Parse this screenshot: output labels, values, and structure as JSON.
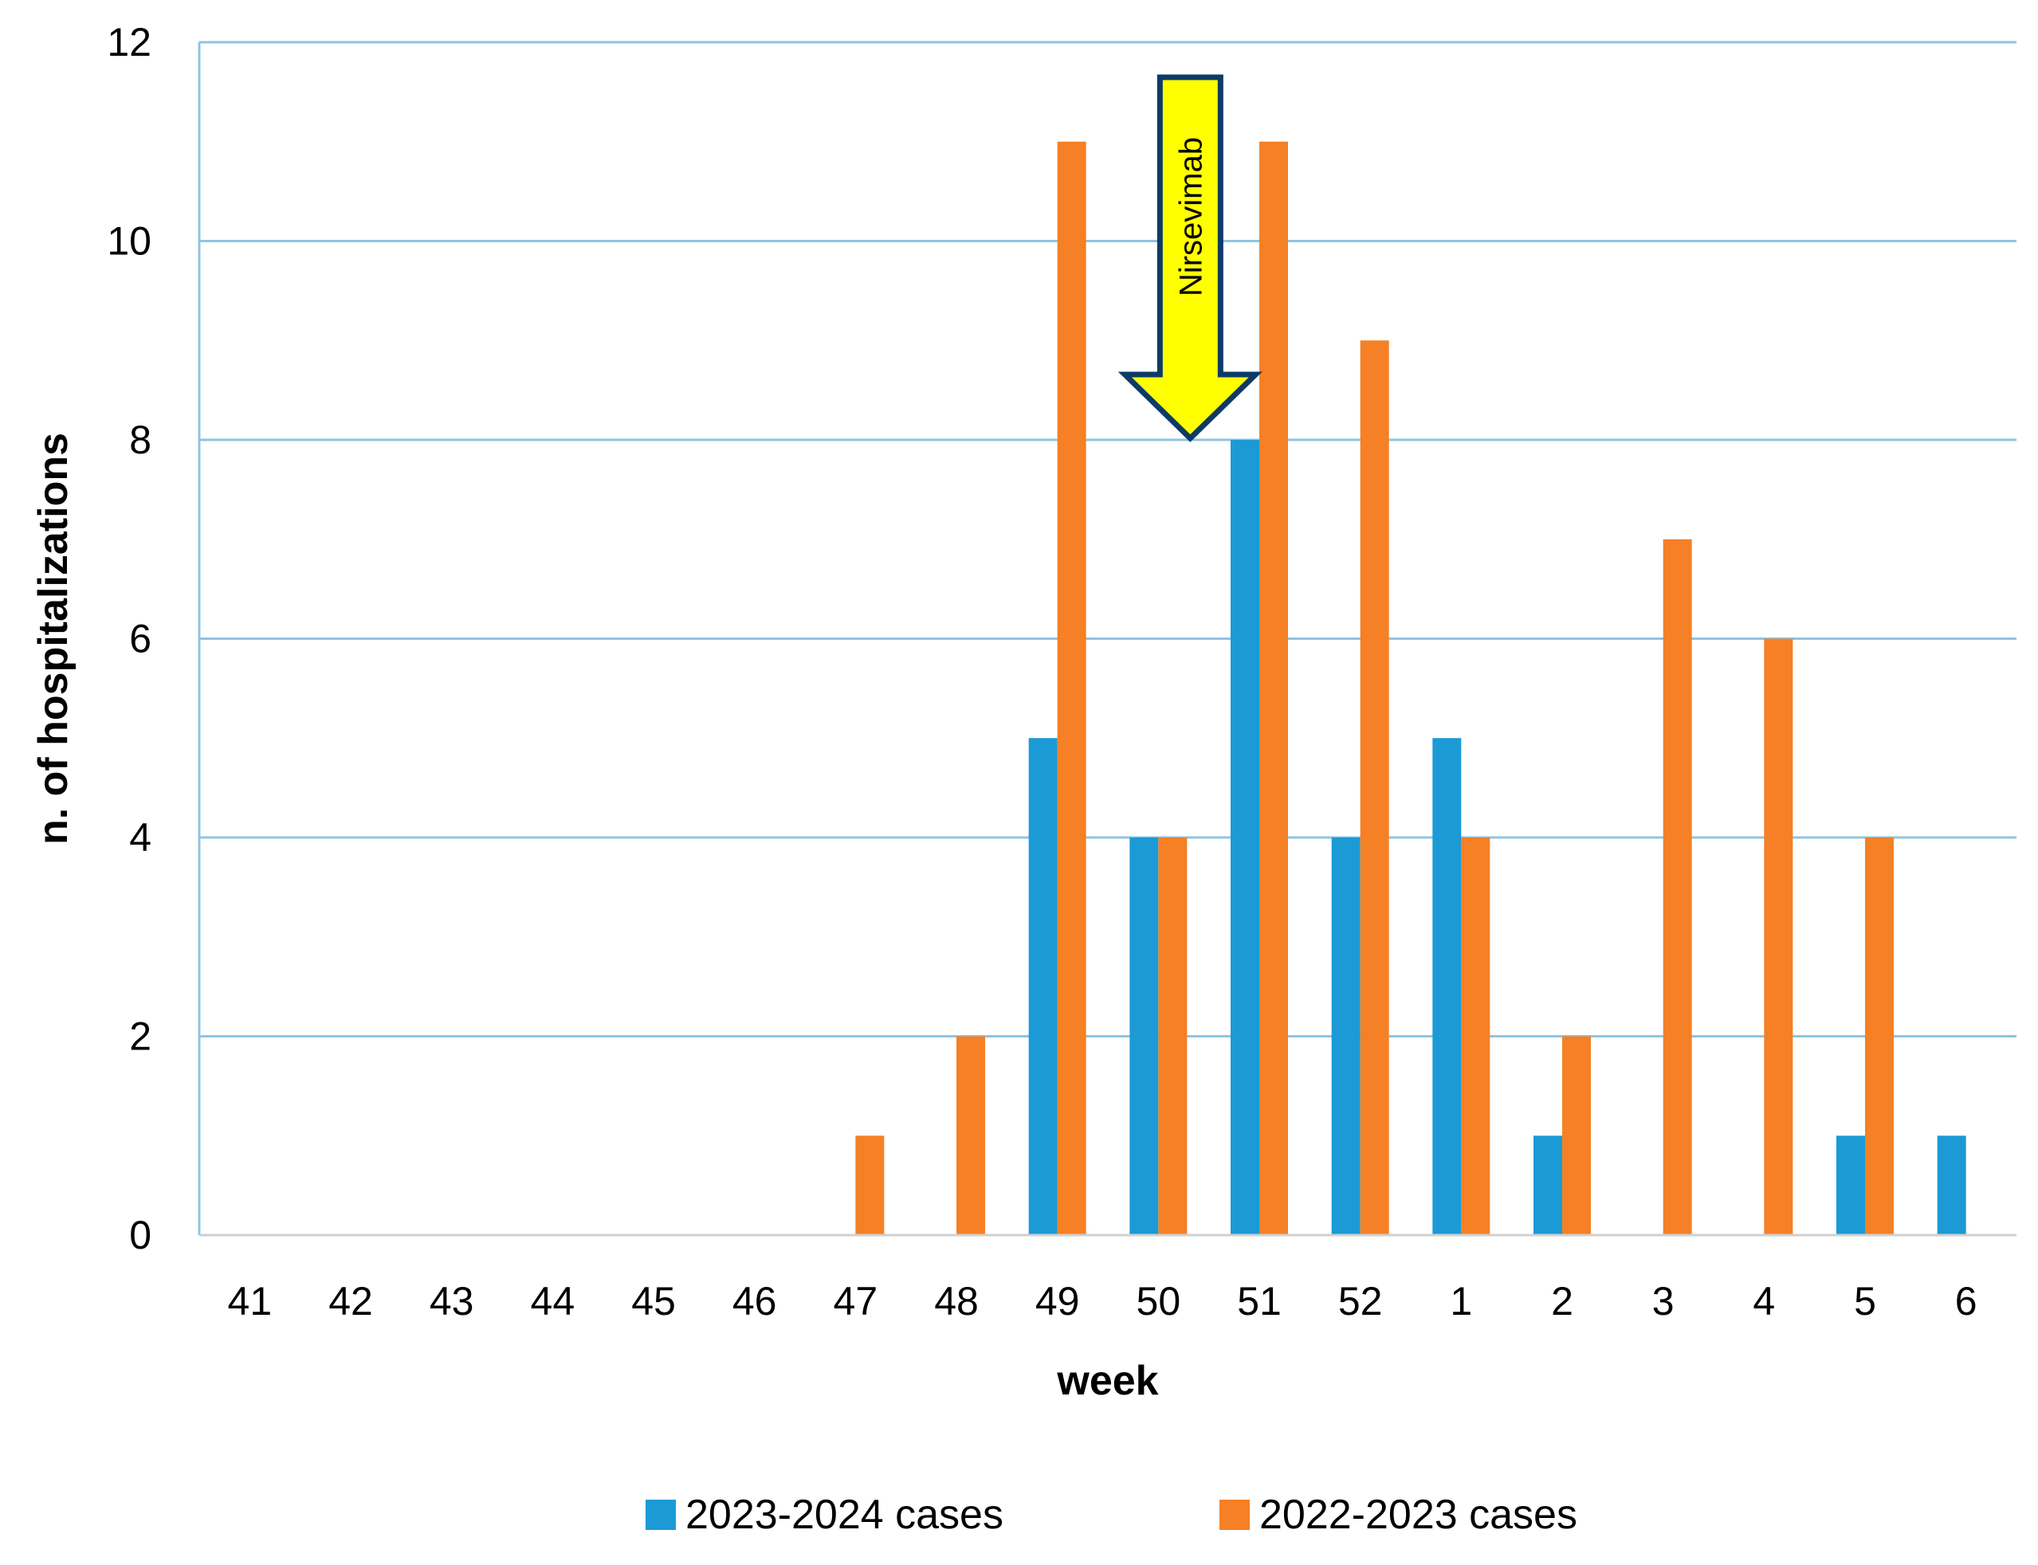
{
  "chart_data": {
    "type": "bar",
    "title": "",
    "xlabel": "week",
    "ylabel": "n. of hospitalizations",
    "categories": [
      "41",
      "42",
      "43",
      "44",
      "45",
      "46",
      "47",
      "48",
      "49",
      "50",
      "51",
      "52",
      "1",
      "2",
      "3",
      "4",
      "5",
      "6"
    ],
    "ylim": [
      0,
      12
    ],
    "yticks": [
      0,
      2,
      4,
      6,
      8,
      10,
      12
    ],
    "grid": true,
    "legend": "bottom",
    "series": [
      {
        "name": "2023-2024 cases",
        "color": "#1b9ad6",
        "values": [
          0,
          0,
          0,
          0,
          0,
          0,
          0,
          0,
          5,
          4,
          8,
          4,
          5,
          1,
          0,
          0,
          1,
          1
        ]
      },
      {
        "name": "2022-2023 cases",
        "color": "#f58025",
        "values": [
          0,
          0,
          0,
          0,
          0,
          0,
          1,
          2,
          11,
          4,
          11,
          9,
          4,
          2,
          7,
          6,
          4,
          0
        ]
      }
    ],
    "annotations": [
      {
        "text": "Nirsevimab",
        "type": "arrow-down",
        "x": "50",
        "y": 8,
        "color": "#ffff00"
      }
    ]
  }
}
